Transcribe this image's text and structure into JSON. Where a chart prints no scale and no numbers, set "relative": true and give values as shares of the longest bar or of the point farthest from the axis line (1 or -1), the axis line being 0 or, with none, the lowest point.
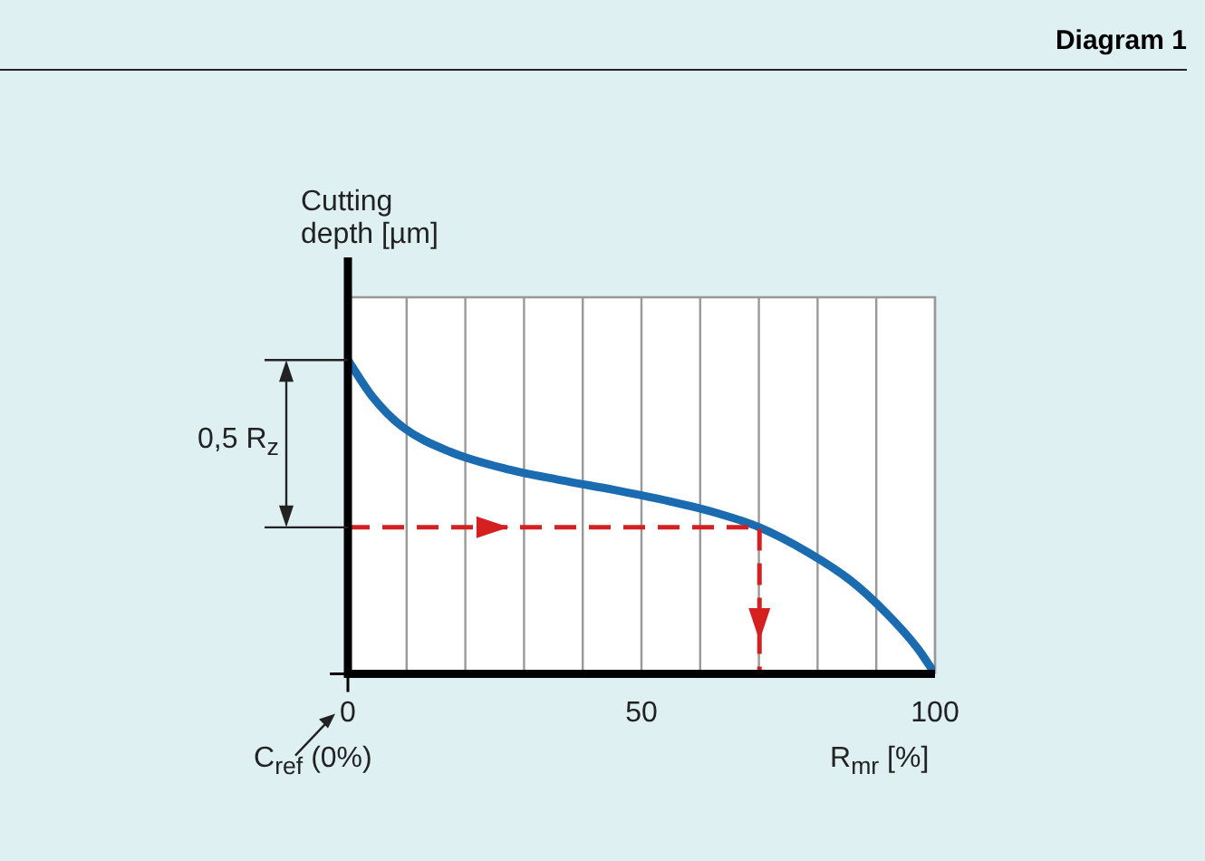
{
  "chart_data": {
    "type": "line",
    "title": "Diagram 1",
    "xlabel": "R$_{mr}$ [%]",
    "ylabel": "Cutting depth [µm]",
    "relative": true,
    "xlim": [
      0,
      100
    ],
    "xticks": [
      0,
      {
        "value": 10,
        "label": null
      },
      {
        "value": 20,
        "label": null
      },
      {
        "value": 30,
        "label": null
      },
      {
        "value": 40,
        "label": null
      },
      50,
      {
        "value": 60,
        "label": null
      },
      {
        "value": 70,
        "label": null
      },
      {
        "value": 80,
        "label": null
      },
      {
        "value": 90,
        "label": null
      },
      100
    ],
    "grid": "x",
    "legend": false,
    "marker": "none",
    "series": [
      {
        "color": "#1a6bb0",
        "line_style": "solid",
        "x": [
          0,
          4.1,
          9.3,
          17.5,
          26.8,
          36.1,
          45.4,
          54.6,
          62.9,
          70.1,
          78.4,
          85.6,
          91.8,
          96.9,
          100
        ],
        "values": [
          1,
          0.885,
          0.787,
          0.707,
          0.654,
          0.618,
          0.586,
          0.551,
          0.512,
          0.467,
          0.387,
          0.298,
          0.192,
          0.085,
          0
        ]
      },
      {
        "color": "#d42020",
        "line_style": "dashed",
        "x": [
          0,
          70.1,
          70.1
        ],
        "values": [
          0.467,
          0.467,
          0
        ]
      }
    ],
    "annotations": [
      "C$_{ref}$ (0%)",
      "0,5 R$_{z}$"
    ]
  }
}
